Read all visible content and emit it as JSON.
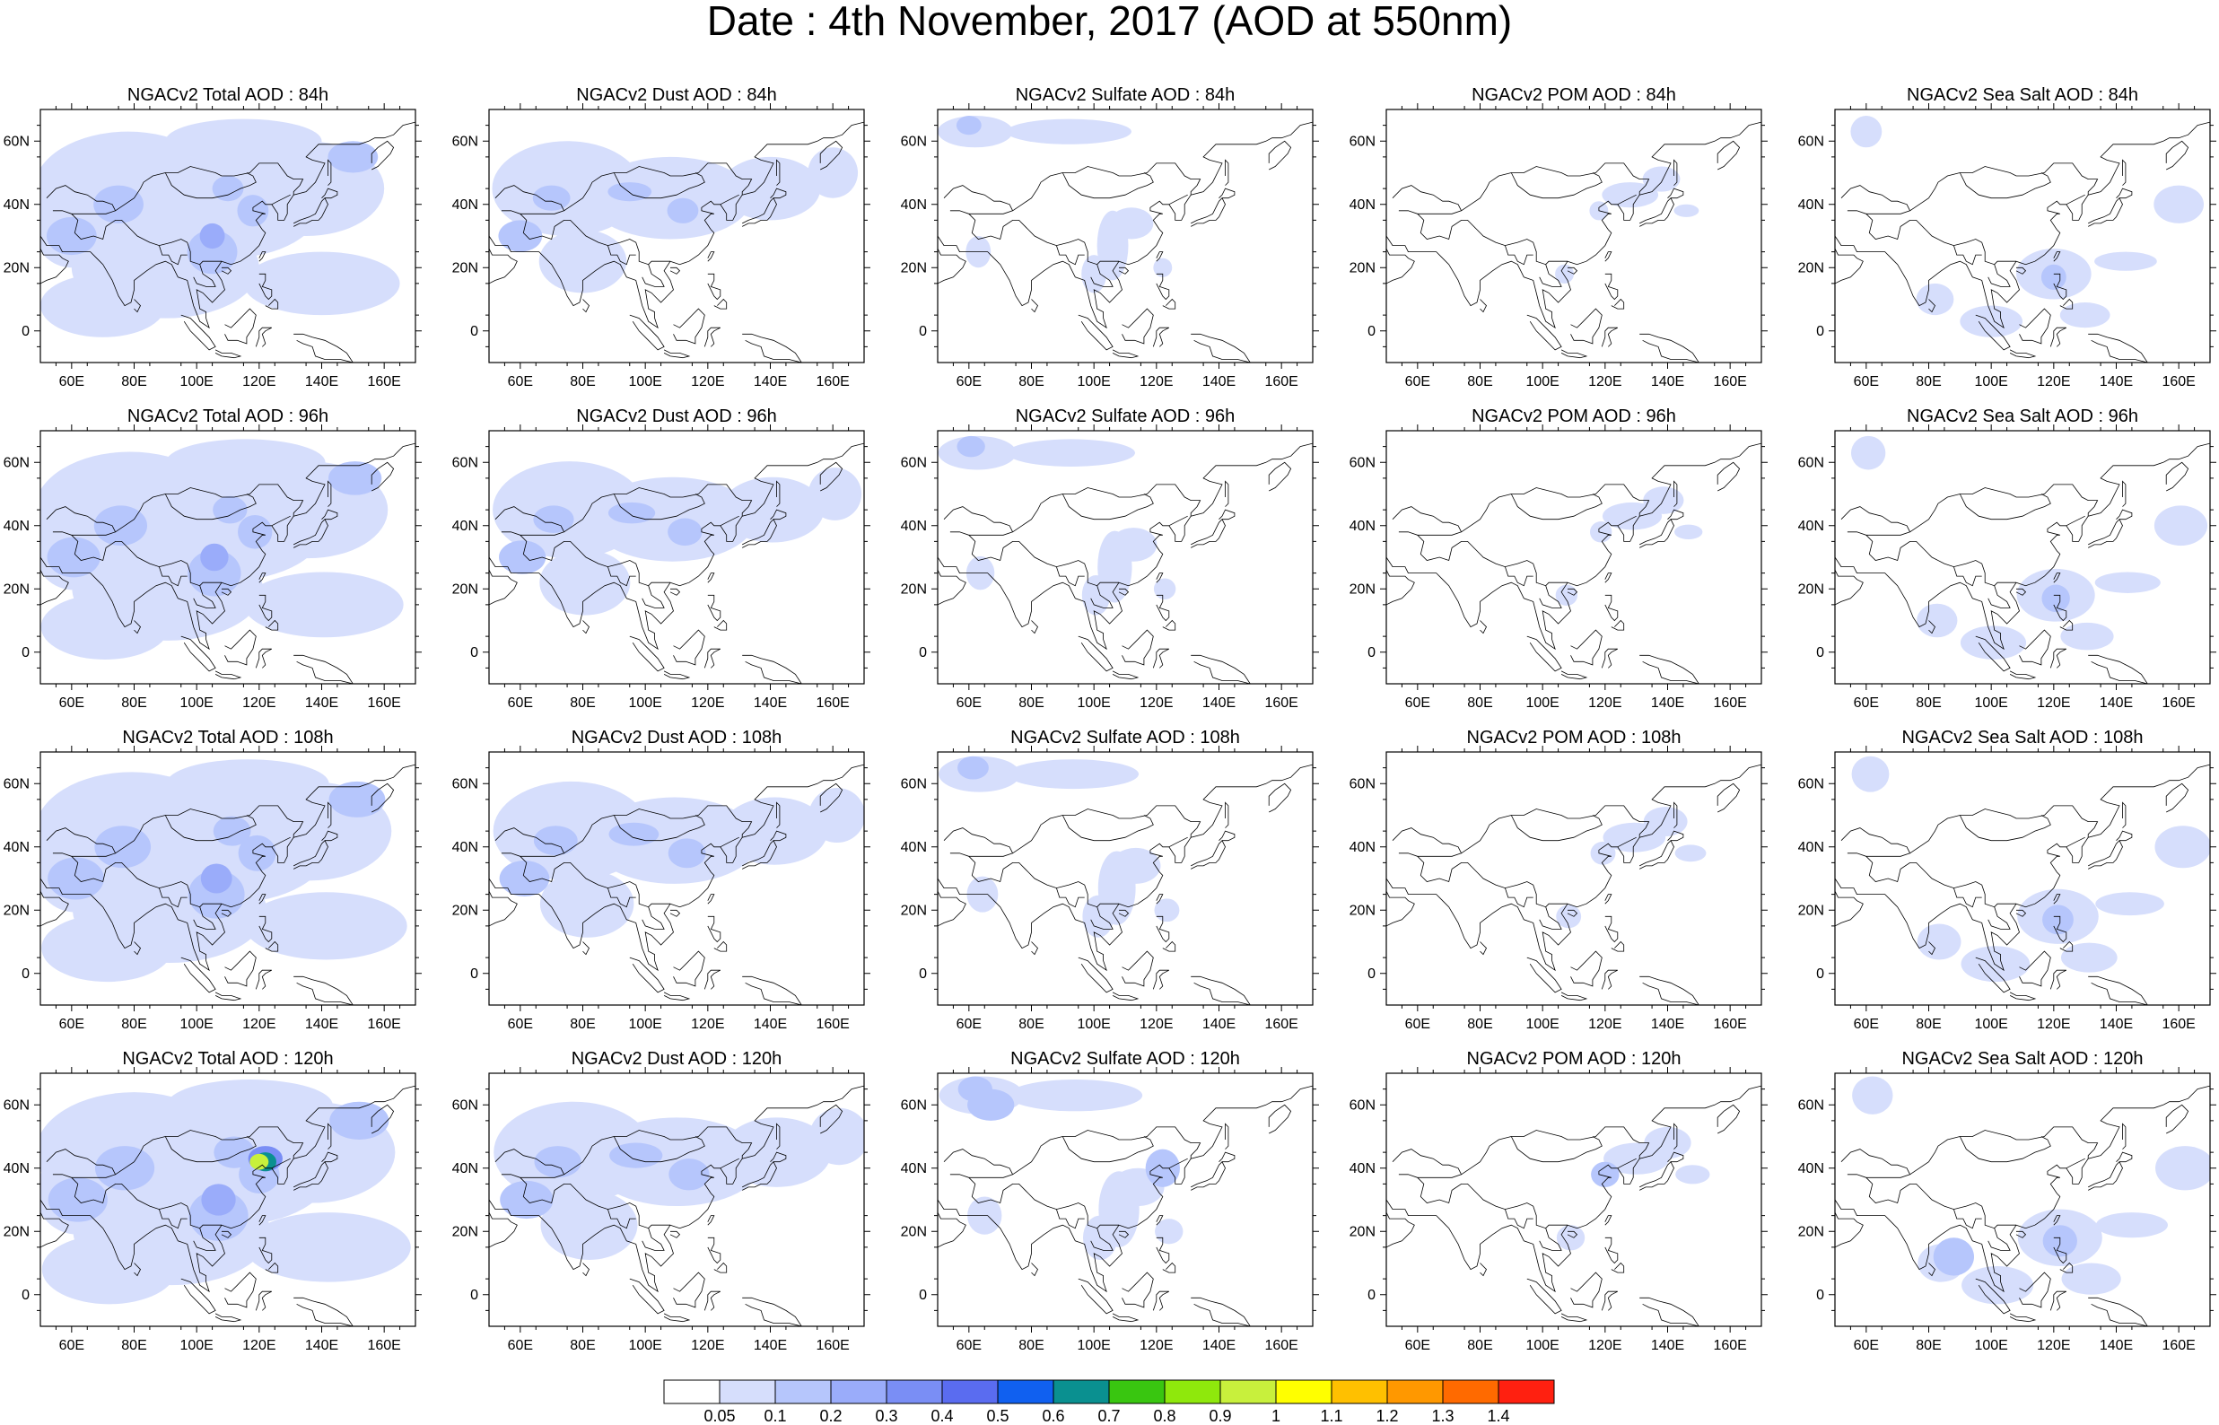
{
  "title": "Date : 4th November, 2017 (AOD at 550nm)",
  "x_tick_labels": [
    "60E",
    "80E",
    "100E",
    "120E",
    "140E",
    "160E"
  ],
  "y_tick_labels": [
    "60N",
    "40N",
    "20N",
    "0"
  ],
  "x_ticks_deg": [
    60,
    80,
    100,
    120,
    140,
    160
  ],
  "y_ticks_deg": [
    60,
    40,
    20,
    0
  ],
  "lon_range": [
    50,
    170
  ],
  "lat_range": [
    -10,
    70
  ],
  "panels": [
    {
      "title": "NGACv2 Total AOD : 84h",
      "species": "total",
      "hour": 84
    },
    {
      "title": "NGACv2 Dust AOD : 84h",
      "species": "dust",
      "hour": 84
    },
    {
      "title": "NGACv2 Sulfate AOD : 84h",
      "species": "sulfate",
      "hour": 84
    },
    {
      "title": "NGACv2 POM AOD : 84h",
      "species": "pom",
      "hour": 84
    },
    {
      "title": "NGACv2 Sea Salt AOD : 84h",
      "species": "seasalt",
      "hour": 84
    },
    {
      "title": "NGACv2 Total AOD : 96h",
      "species": "total",
      "hour": 96
    },
    {
      "title": "NGACv2 Dust AOD : 96h",
      "species": "dust",
      "hour": 96
    },
    {
      "title": "NGACv2 Sulfate AOD : 96h",
      "species": "sulfate",
      "hour": 96
    },
    {
      "title": "NGACv2 POM AOD : 96h",
      "species": "pom",
      "hour": 96
    },
    {
      "title": "NGACv2 Sea Salt AOD : 96h",
      "species": "seasalt",
      "hour": 96
    },
    {
      "title": "NGACv2 Total AOD : 108h",
      "species": "total",
      "hour": 108
    },
    {
      "title": "NGACv2 Dust AOD : 108h",
      "species": "dust",
      "hour": 108
    },
    {
      "title": "NGACv2 Sulfate AOD : 108h",
      "species": "sulfate",
      "hour": 108
    },
    {
      "title": "NGACv2 POM AOD : 108h",
      "species": "pom",
      "hour": 108
    },
    {
      "title": "NGACv2 Sea Salt AOD : 108h",
      "species": "seasalt",
      "hour": 108
    },
    {
      "title": "NGACv2 Total AOD : 120h",
      "species": "total",
      "hour": 120
    },
    {
      "title": "NGACv2 Dust AOD : 120h",
      "species": "dust",
      "hour": 120
    },
    {
      "title": "NGACv2 Sulfate AOD : 120h",
      "species": "sulfate",
      "hour": 120
    },
    {
      "title": "NGACv2 POM AOD : 120h",
      "species": "pom",
      "hour": 120
    },
    {
      "title": "NGACv2 Sea Salt  AOD : 120h",
      "species": "seasalt",
      "hour": 120
    }
  ],
  "colorbar": {
    "labels": [
      "0.05",
      "0.1",
      "0.2",
      "0.3",
      "0.4",
      "0.5",
      "0.6",
      "0.7",
      "0.8",
      "0.9",
      "1",
      "1.1",
      "1.2",
      "1.3",
      "1.4"
    ],
    "colors": [
      "#ffffff",
      "#d6defc",
      "#b6c6fc",
      "#9aacfa",
      "#7a8ef5",
      "#5a6cf0",
      "#1060f0",
      "#0a9090",
      "#39c610",
      "#8fe80c",
      "#c8f03c",
      "#ffff00",
      "#ffc000",
      "#ff9800",
      "#ff6a00",
      "#ff2010"
    ]
  }
}
